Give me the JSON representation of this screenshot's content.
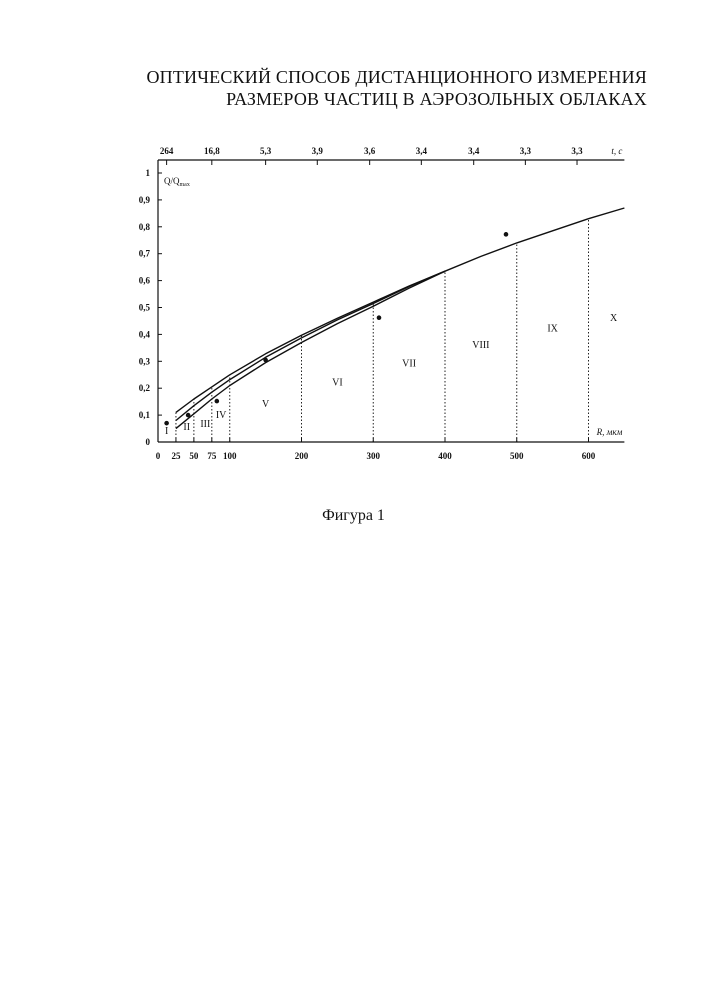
{
  "title_line1": "ОПТИЧЕСКИЙ СПОСОБ ДИСТАНЦИОННОГО ИЗМЕРЕНИЯ",
  "title_line2": "РАЗМЕРОВ ЧАСТИЦ В АЭРОЗОЛЬНЫХ ОБЛАКАХ",
  "caption": "Фигура 1",
  "chart_data": {
    "type": "line",
    "ylabel_main": "Q/Q",
    "ylabel_sub": "max",
    "xlabel": "R, мкм",
    "top_axis_label": "t, c",
    "xlim": [
      0,
      650
    ],
    "ylim": [
      0,
      1
    ],
    "y_ticks": [
      0,
      0.1,
      0.2,
      0.3,
      0.4,
      0.5,
      0.6,
      0.7,
      0.8,
      0.9,
      1
    ],
    "y_tick_labels": [
      "0",
      "0,1",
      "0,2",
      "0,3",
      "0,4",
      "0,5",
      "0,6",
      "0,7",
      "0,8",
      "0,9",
      "1"
    ],
    "x_ticks": [
      0,
      25,
      50,
      75,
      100,
      200,
      300,
      400,
      500,
      600
    ],
    "x_tick_labels": [
      "0",
      "25",
      "50",
      "75",
      "100",
      "200",
      "300",
      "400",
      "500",
      "600"
    ],
    "top_ticks": [
      {
        "x": 12,
        "label": "264"
      },
      {
        "x": 75,
        "label": "16,8"
      },
      {
        "x": 150,
        "label": "5,3"
      },
      {
        "x": 222,
        "label": "3,9"
      },
      {
        "x": 295,
        "label": "3,6"
      },
      {
        "x": 367,
        "label": "3,4"
      },
      {
        "x": 440,
        "label": "3,4"
      },
      {
        "x": 512,
        "label": "3,3"
      },
      {
        "x": 584,
        "label": "3,3"
      }
    ],
    "dashed_lines_x": [
      25,
      50,
      75,
      100,
      200,
      300,
      400,
      500,
      600
    ],
    "zones": [
      {
        "label": "I",
        "x": 12,
        "y": 0.03
      },
      {
        "label": "II",
        "x": 40,
        "y": 0.045
      },
      {
        "label": "III",
        "x": 66,
        "y": 0.055
      },
      {
        "label": "IV",
        "x": 88,
        "y": 0.09
      },
      {
        "label": "V",
        "x": 150,
        "y": 0.13
      },
      {
        "label": "VI",
        "x": 250,
        "y": 0.21
      },
      {
        "label": "VII",
        "x": 350,
        "y": 0.28
      },
      {
        "label": "VIII",
        "x": 450,
        "y": 0.35
      },
      {
        "label": "IX",
        "x": 550,
        "y": 0.41
      },
      {
        "label": "X",
        "x": 635,
        "y": 0.45
      }
    ],
    "series": [
      {
        "x": [
          25,
          50,
          75,
          100,
          150,
          200,
          250,
          300,
          350,
          400,
          450,
          500,
          550,
          600,
          650
        ],
        "y": [
          0.11,
          0.16,
          0.205,
          0.25,
          0.328,
          0.397,
          0.46,
          0.52,
          0.58,
          0.635,
          0.69,
          0.74,
          0.785,
          0.83,
          0.87
        ]
      },
      {
        "x": [
          25,
          50,
          75,
          100,
          150,
          200,
          250,
          300,
          350,
          400
        ],
        "y": [
          0.08,
          0.135,
          0.185,
          0.232,
          0.315,
          0.387,
          0.454,
          0.515,
          0.578,
          0.635
        ]
      },
      {
        "x": [
          25,
          50,
          75,
          100,
          150,
          200,
          250,
          300,
          350,
          400
        ],
        "y": [
          0.05,
          0.105,
          0.16,
          0.21,
          0.295,
          0.37,
          0.44,
          0.505,
          0.572,
          0.635
        ]
      }
    ],
    "points": [
      {
        "x": 12,
        "y": 0.07
      },
      {
        "x": 42,
        "y": 0.1
      },
      {
        "x": 82,
        "y": 0.152
      },
      {
        "x": 150,
        "y": 0.305
      },
      {
        "x": 308,
        "y": 0.462
      },
      {
        "x": 485,
        "y": 0.772
      }
    ]
  }
}
